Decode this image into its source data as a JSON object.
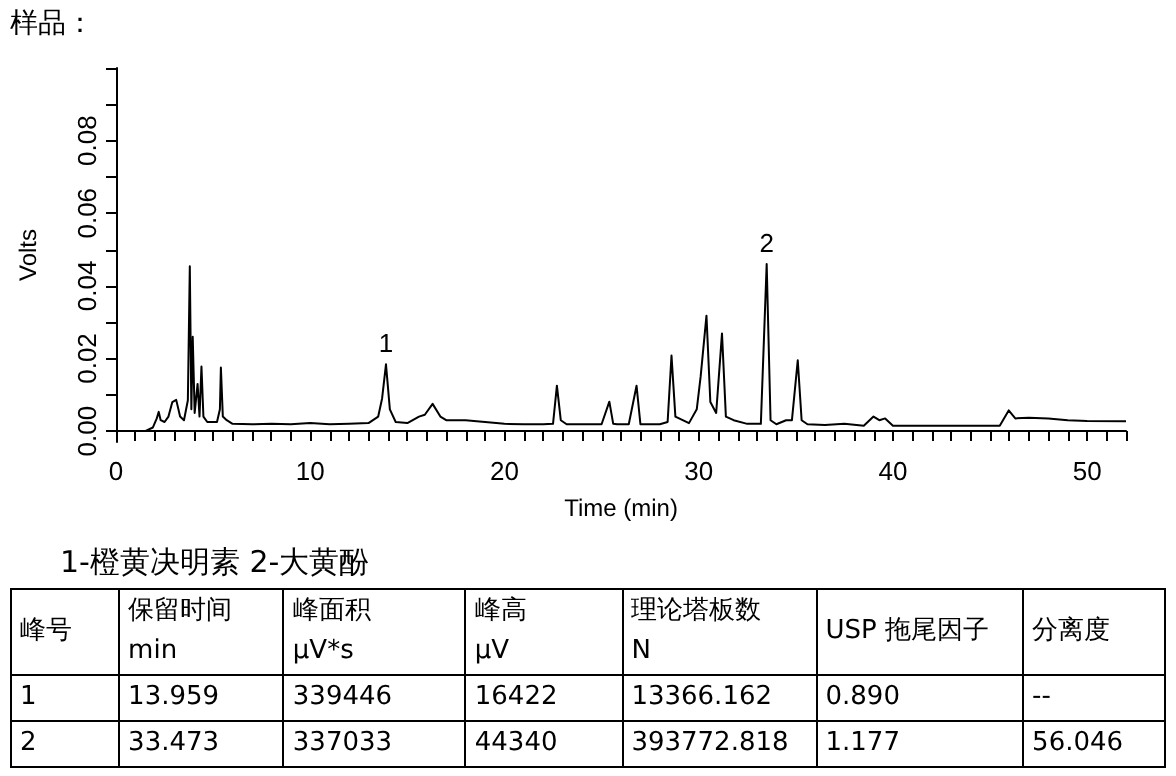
{
  "chart_data": [
    {
      "type": "line",
      "title": "样品：",
      "xlabel": "Time (min)",
      "ylabel": "Volts",
      "x": [
        0,
        1.5,
        1.9,
        2.1,
        2.2,
        2.3,
        2.5,
        2.7,
        2.9,
        3.1,
        3.3,
        3.5,
        3.7,
        3.8,
        3.88,
        3.95,
        4.05,
        4.2,
        4.3,
        4.4,
        4.5,
        4.7,
        5.2,
        5.35,
        5.4,
        5.5,
        5.7,
        6.0,
        7,
        8,
        9,
        10,
        11,
        12,
        13,
        13.5,
        13.7,
        13.9,
        14.1,
        14.4,
        15,
        15.6,
        15.9,
        16.3,
        16.7,
        17,
        18,
        19,
        20,
        21,
        22,
        22.5,
        22.7,
        22.9,
        23.2,
        24,
        25,
        25.4,
        25.6,
        25.8,
        26.4,
        26.8,
        27.0,
        28,
        28.4,
        28.6,
        28.8,
        29.5,
        29.9,
        30.1,
        30.4,
        30.6,
        30.9,
        31.2,
        31.4,
        31.8,
        32.5,
        33.2,
        33.5,
        33.7,
        34.0,
        34.5,
        34.8,
        35.1,
        35.3,
        35.6,
        36.5,
        37.5,
        38.5,
        39.0,
        39.3,
        39.6,
        40,
        42,
        44,
        45.5,
        45.96,
        46.3,
        47,
        48,
        49,
        50,
        52
      ],
      "series": [
        {
          "color": "#000000",
          "values": [
            0,
            0,
            0.001,
            0.0035,
            0.0053,
            0.003,
            0.0025,
            0.004,
            0.008,
            0.0086,
            0.004,
            0.003,
            0.0085,
            0.0454,
            0.006,
            0.026,
            0.005,
            0.013,
            0.004,
            0.0178,
            0.004,
            0.0025,
            0.0025,
            0.006,
            0.0175,
            0.004,
            0.003,
            0.002,
            0.0019,
            0.002,
            0.0019,
            0.0022,
            0.0019,
            0.002,
            0.0022,
            0.004,
            0.009,
            0.0184,
            0.006,
            0.0025,
            0.0022,
            0.004,
            0.0045,
            0.0075,
            0.004,
            0.003,
            0.003,
            0.0025,
            0.002,
            0.0019,
            0.0019,
            0.002,
            0.0125,
            0.003,
            0.0019,
            0.0019,
            0.0019,
            0.0081,
            0.002,
            0.0019,
            0.0019,
            0.0125,
            0.0019,
            0.0019,
            0.0025,
            0.0208,
            0.004,
            0.0022,
            0.006,
            0.015,
            0.0318,
            0.008,
            0.005,
            0.0269,
            0.004,
            0.003,
            0.002,
            0.002,
            0.046,
            0.003,
            0.0019,
            0.003,
            0.003,
            0.0195,
            0.003,
            0.0019,
            0.0017,
            0.002,
            0.0015,
            0.004,
            0.003,
            0.0035,
            0.0015,
            0.0015,
            0.0015,
            0.0015,
            0.0057,
            0.0035,
            0.0037,
            0.0035,
            0.003,
            0.0028,
            0.0027
          ]
        }
      ],
      "xlim": [
        0,
        52
      ],
      "ylim": [
        -0.003,
        0.1
      ],
      "xticks": [
        0,
        {
          "value": 1,
          "label": null
        },
        {
          "value": 2,
          "label": null
        },
        {
          "value": 3,
          "label": null
        },
        {
          "value": 4,
          "label": null
        },
        {
          "value": 5,
          "label": null
        },
        {
          "value": 6,
          "label": null
        },
        {
          "value": 7,
          "label": null
        },
        {
          "value": 8,
          "label": null
        },
        {
          "value": 9,
          "label": null
        },
        10,
        {
          "value": 11,
          "label": null
        },
        {
          "value": 12,
          "label": null
        },
        {
          "value": 13,
          "label": null
        },
        {
          "value": 14,
          "label": null
        },
        {
          "value": 15,
          "label": null
        },
        {
          "value": 16,
          "label": null
        },
        {
          "value": 17,
          "label": null
        },
        {
          "value": 18,
          "label": null
        },
        {
          "value": 19,
          "label": null
        },
        20,
        {
          "value": 21,
          "label": null
        },
        {
          "value": 22,
          "label": null
        },
        {
          "value": 23,
          "label": null
        },
        {
          "value": 24,
          "label": null
        },
        {
          "value": 25,
          "label": null
        },
        {
          "value": 26,
          "label": null
        },
        {
          "value": 27,
          "label": null
        },
        {
          "value": 28,
          "label": null
        },
        {
          "value": 29,
          "label": null
        },
        30,
        {
          "value": 31,
          "label": null
        },
        {
          "value": 32,
          "label": null
        },
        {
          "value": 33,
          "label": null
        },
        {
          "value": 34,
          "label": null
        },
        {
          "value": 35,
          "label": null
        },
        {
          "value": 36,
          "label": null
        },
        {
          "value": 37,
          "label": null
        },
        {
          "value": 38,
          "label": null
        },
        {
          "value": 39,
          "label": null
        },
        40,
        {
          "value": 41,
          "label": null
        },
        {
          "value": 42,
          "label": null
        },
        {
          "value": 43,
          "label": null
        },
        {
          "value": 44,
          "label": null
        },
        {
          "value": 45,
          "label": null
        },
        {
          "value": 46,
          "label": null
        },
        {
          "value": 47,
          "label": null
        },
        {
          "value": 48,
          "label": null
        },
        {
          "value": 49,
          "label": null
        },
        50,
        {
          "value": 51,
          "label": null
        },
        {
          "value": 52,
          "label": null
        }
      ],
      "yticks": [
        {
          "value": 0,
          "label": "0.00"
        },
        {
          "value": 0.01,
          "label": null
        },
        {
          "value": 0.02,
          "label": "0.02"
        },
        {
          "value": 0.03,
          "label": null
        },
        {
          "value": 0.04,
          "label": "0.04"
        },
        {
          "value": 0.05,
          "label": null
        },
        {
          "value": 0.06,
          "label": "0.06"
        },
        {
          "value": 0.07,
          "label": null
        },
        {
          "value": 0.08,
          "label": "0.08"
        },
        {
          "value": 0.09,
          "label": null
        },
        {
          "value": 0.1,
          "label": null
        }
      ],
      "annotations": [
        {
          "text": "1",
          "x": 13.9,
          "y": 0.0184
        },
        {
          "text": "2",
          "x": 33.5,
          "y": 0.046
        }
      ],
      "grid": false,
      "marker": "none",
      "line_style": "solid"
    },
    {
      "type": "other",
      "title": "1-橙黄决明素  2-大黄酚",
      "categories": [
        "峰号",
        "保留时间\nmin",
        "峰面积\nμV*s",
        "峰高\nμV",
        "理论塔板数\nN",
        "USP 拖尾因子",
        "分离度"
      ],
      "cell_labels": [
        [
          "1",
          "13.959",
          "339446",
          "16422",
          "13366.162",
          "0.890",
          "--"
        ],
        [
          "2",
          "33.473",
          "337033",
          "44340",
          "393772.818",
          "1.177",
          "56.046"
        ]
      ]
    }
  ]
}
